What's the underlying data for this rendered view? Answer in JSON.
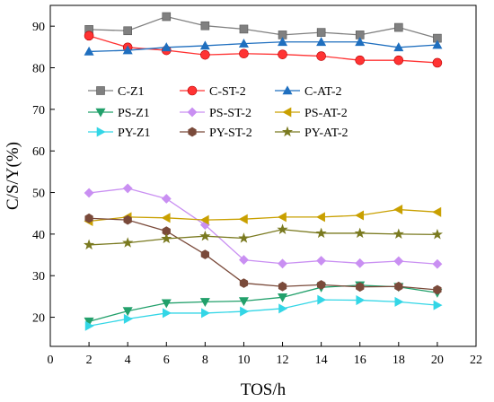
{
  "chart_data": {
    "type": "line",
    "title": "",
    "xlabel": "TOS/h",
    "ylabel": "C/S/Y(%)",
    "xlim": [
      0,
      22
    ],
    "ylim": [
      13,
      95
    ],
    "x_ticks": [
      0,
      2,
      4,
      6,
      8,
      10,
      12,
      14,
      16,
      18,
      20,
      22
    ],
    "y_ticks": [
      20,
      30,
      40,
      50,
      60,
      70,
      80,
      90
    ],
    "grid": false,
    "legend_position": "upper-left, 3 columns",
    "x": [
      2,
      4,
      6,
      8,
      10,
      12,
      14,
      16,
      18,
      20
    ],
    "series": [
      {
        "name": "C-Z1",
        "marker": "square",
        "color": "#808080",
        "values": [
          89.2,
          88.9,
          92.3,
          90.1,
          89.3,
          87.9,
          88.5,
          87.9,
          89.7,
          87.1
        ]
      },
      {
        "name": "C-ST-2",
        "marker": "circle",
        "color": "#ff3333",
        "values": [
          87.7,
          84.9,
          84.2,
          83.1,
          83.4,
          83.2,
          82.8,
          81.8,
          81.8,
          81.2
        ]
      },
      {
        "name": "C-AT-2",
        "marker": "triangle-up",
        "color": "#1f6fbf",
        "values": [
          83.9,
          84.2,
          84.9,
          85.3,
          85.8,
          86.2,
          86.2,
          86.2,
          84.9,
          85.5
        ]
      },
      {
        "name": "PS-Z1",
        "marker": "triangle-down",
        "color": "#22a06b",
        "values": [
          19.0,
          21.5,
          23.4,
          23.7,
          23.9,
          24.8,
          27.2,
          27.7,
          27.3,
          25.9
        ]
      },
      {
        "name": "PS-ST-2",
        "marker": "diamond",
        "color": "#c98ff2",
        "values": [
          49.9,
          51.0,
          48.5,
          42.2,
          33.8,
          32.9,
          33.6,
          33.0,
          33.5,
          32.8
        ]
      },
      {
        "name": "PS-AT-2",
        "marker": "triangle-left",
        "color": "#c9a000",
        "values": [
          43.1,
          44.1,
          43.9,
          43.4,
          43.6,
          44.1,
          44.1,
          44.5,
          45.9,
          45.3
        ]
      },
      {
        "name": "PY-Z1",
        "marker": "triangle-right",
        "color": "#33d6e6",
        "values": [
          17.9,
          19.6,
          21.0,
          21.0,
          21.4,
          22.1,
          24.2,
          24.1,
          23.7,
          22.9
        ]
      },
      {
        "name": "PY-ST-2",
        "marker": "hexagon",
        "color": "#7a4a3a",
        "values": [
          43.8,
          43.4,
          40.7,
          35.1,
          28.2,
          27.4,
          27.8,
          27.3,
          27.4,
          26.6
        ]
      },
      {
        "name": "PY-AT-2",
        "marker": "star",
        "color": "#7a7a20",
        "values": [
          37.4,
          37.9,
          38.9,
          39.5,
          39.0,
          41.1,
          40.2,
          40.2,
          40.0,
          39.9
        ]
      }
    ]
  }
}
